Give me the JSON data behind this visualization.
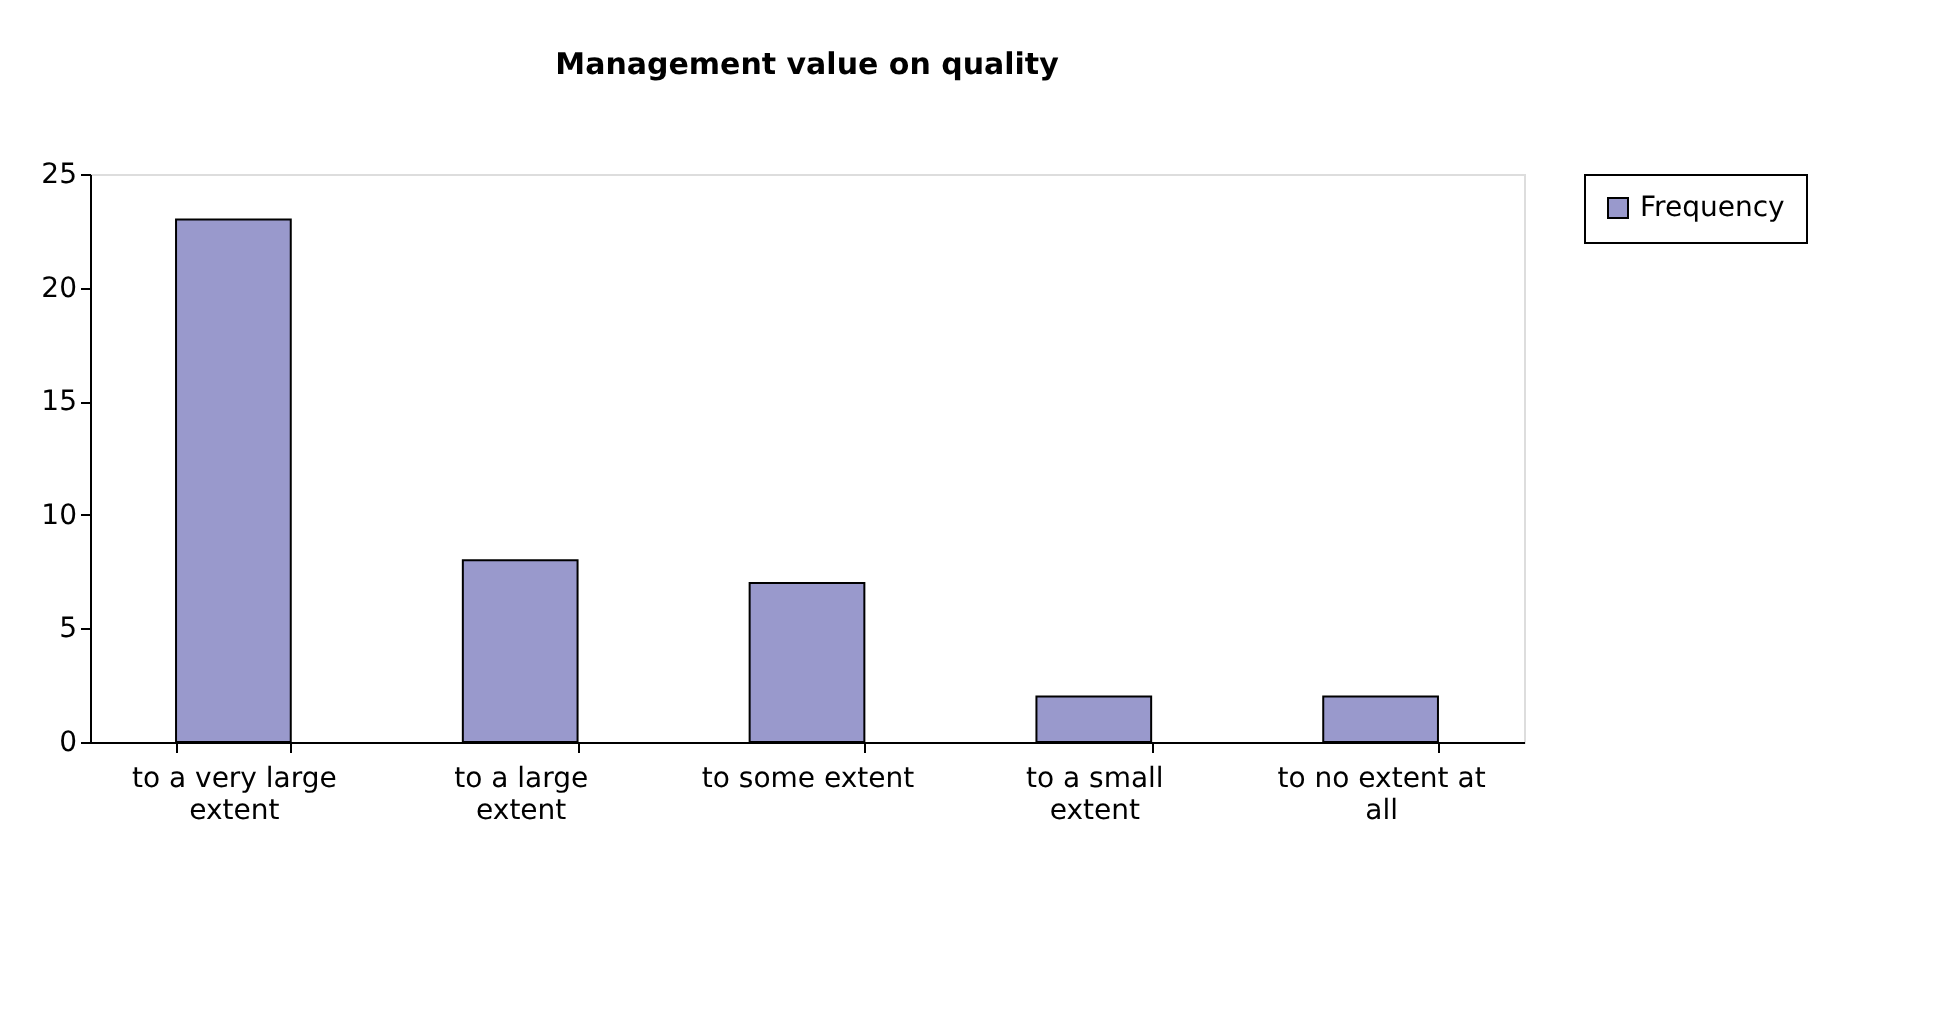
{
  "chart_data": {
    "type": "bar",
    "title": "Management value on quality",
    "categories": [
      "to a very large extent",
      "to a large extent",
      "to some extent",
      "to a small extent",
      "to no extent at all"
    ],
    "series": [
      {
        "name": "Frequency",
        "color": "#9999cc",
        "values": [
          23,
          8,
          7,
          2,
          2
        ]
      }
    ],
    "ylim": [
      0,
      25
    ],
    "yticks": [
      0,
      5,
      10,
      15,
      20,
      25
    ],
    "grid": false,
    "legend": "right"
  }
}
